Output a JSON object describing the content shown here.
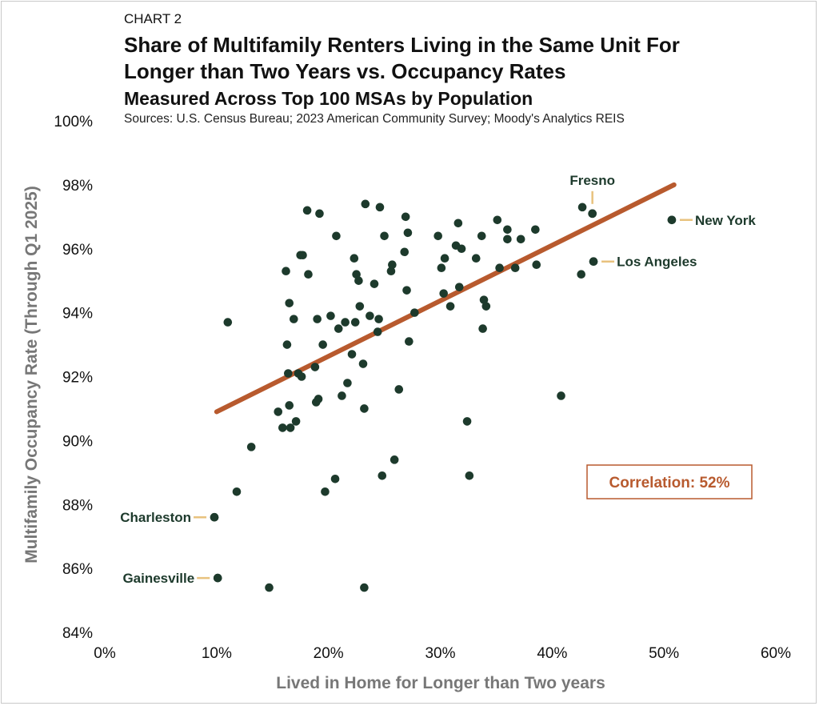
{
  "header": {
    "chart_label": "CHART 2",
    "title_line1": "Share of Multifamily Renters Living in the Same Unit For",
    "title_line2": "Longer than Two Years vs. Occupancy Rates",
    "subtitle": "Measured Across Top 100 MSAs by Population",
    "sources": "Sources: U.S. Census Bureau; 2023 American Community Survey; Moody's Analytics REIS"
  },
  "colors": {
    "points": "#1d3a2c",
    "trend": "#b85a2e",
    "leader": "#e8c27e",
    "axis_text": "#777777",
    "callout_text": "#1d3a2c"
  },
  "chart_data": {
    "type": "scatter",
    "title": "Share of Multifamily Renters Living in the Same Unit For Longer than Two Years vs. Occupancy Rates",
    "subtitle": "Measured Across Top 100 MSAs by Population",
    "xlabel": "Lived in Home for Longer than Two years",
    "ylabel": "Multifamily Occupancy Rate (Through Q1 2025)",
    "xlim": [
      0,
      60
    ],
    "ylim": [
      84,
      100
    ],
    "x_ticks": [
      0,
      10,
      20,
      30,
      40,
      50,
      60
    ],
    "x_tick_labels": [
      "0%",
      "10%",
      "20%",
      "30%",
      "40%",
      "50%",
      "60%"
    ],
    "y_ticks": [
      84,
      86,
      88,
      90,
      92,
      94,
      96,
      98,
      100
    ],
    "y_tick_labels": [
      "84%",
      "86%",
      "88%",
      "90%",
      "92%",
      "94%",
      "96%",
      "98%",
      "100%"
    ],
    "grid": false,
    "trendline": {
      "x": [
        10.0,
        50.9
      ],
      "y": [
        90.9,
        98.0
      ]
    },
    "correlation_label": "Correlation: 52%",
    "labeled_points": [
      {
        "name": "Fresno",
        "x": 43.6,
        "y": 97.1,
        "label_side": "top"
      },
      {
        "name": "New York",
        "x": 50.7,
        "y": 96.9,
        "label_side": "right"
      },
      {
        "name": "Los Angeles",
        "x": 43.7,
        "y": 95.6,
        "label_side": "right"
      },
      {
        "name": "Charleston",
        "x": 9.8,
        "y": 87.6,
        "label_side": "left"
      },
      {
        "name": "Gainesville",
        "x": 10.1,
        "y": 85.7,
        "label_side": "left"
      }
    ],
    "points": [
      [
        11.0,
        93.7
      ],
      [
        11.8,
        88.4
      ],
      [
        13.1,
        89.8
      ],
      [
        14.7,
        85.4
      ],
      [
        15.5,
        90.9
      ],
      [
        15.9,
        90.4
      ],
      [
        16.2,
        95.3
      ],
      [
        16.3,
        93.0
      ],
      [
        16.4,
        92.1
      ],
      [
        16.5,
        94.3
      ],
      [
        16.5,
        91.1
      ],
      [
        16.6,
        90.4
      ],
      [
        16.9,
        93.8
      ],
      [
        17.1,
        90.6
      ],
      [
        17.3,
        92.1
      ],
      [
        17.5,
        95.8
      ],
      [
        17.6,
        92.0
      ],
      [
        17.7,
        95.8
      ],
      [
        18.1,
        97.2
      ],
      [
        18.2,
        95.2
      ],
      [
        18.8,
        92.3
      ],
      [
        18.9,
        91.2
      ],
      [
        19.0,
        93.8
      ],
      [
        19.1,
        91.3
      ],
      [
        19.2,
        97.1
      ],
      [
        19.5,
        93.0
      ],
      [
        19.7,
        88.4
      ],
      [
        20.2,
        93.9
      ],
      [
        20.6,
        88.8
      ],
      [
        20.7,
        96.4
      ],
      [
        20.9,
        93.5
      ],
      [
        21.2,
        91.4
      ],
      [
        21.5,
        93.7
      ],
      [
        21.7,
        91.8
      ],
      [
        22.1,
        92.7
      ],
      [
        22.3,
        95.7
      ],
      [
        22.4,
        93.7
      ],
      [
        22.5,
        95.2
      ],
      [
        22.7,
        95.0
      ],
      [
        22.8,
        94.2
      ],
      [
        23.1,
        92.4
      ],
      [
        23.2,
        85.4
      ],
      [
        23.2,
        91.0
      ],
      [
        23.3,
        97.4
      ],
      [
        23.7,
        93.9
      ],
      [
        24.1,
        94.9
      ],
      [
        24.4,
        93.4
      ],
      [
        24.5,
        93.8
      ],
      [
        24.6,
        97.3
      ],
      [
        24.8,
        88.9
      ],
      [
        25.0,
        96.4
      ],
      [
        25.6,
        95.3
      ],
      [
        25.7,
        95.5
      ],
      [
        25.9,
        89.4
      ],
      [
        26.3,
        91.6
      ],
      [
        26.8,
        95.9
      ],
      [
        26.9,
        97.0
      ],
      [
        27.0,
        94.7
      ],
      [
        27.1,
        96.5
      ],
      [
        27.2,
        93.1
      ],
      [
        27.7,
        94.0
      ],
      [
        29.8,
        96.4
      ],
      [
        30.1,
        95.4
      ],
      [
        30.3,
        94.6
      ],
      [
        30.4,
        95.7
      ],
      [
        30.9,
        94.2
      ],
      [
        31.4,
        96.1
      ],
      [
        31.6,
        96.8
      ],
      [
        31.7,
        94.8
      ],
      [
        31.9,
        96.0
      ],
      [
        32.4,
        90.6
      ],
      [
        32.6,
        88.9
      ],
      [
        33.2,
        95.7
      ],
      [
        33.7,
        96.4
      ],
      [
        33.8,
        93.5
      ],
      [
        33.9,
        94.4
      ],
      [
        34.1,
        94.2
      ],
      [
        35.1,
        96.9
      ],
      [
        35.3,
        95.4
      ],
      [
        36.0,
        96.6
      ],
      [
        36.0,
        96.3
      ],
      [
        36.7,
        95.4
      ],
      [
        37.2,
        96.3
      ],
      [
        38.5,
        96.6
      ],
      [
        38.6,
        95.5
      ],
      [
        40.8,
        91.4
      ],
      [
        42.6,
        95.2
      ],
      [
        42.7,
        97.3
      ],
      [
        43.6,
        97.1
      ],
      [
        43.7,
        95.6
      ],
      [
        50.7,
        96.9
      ],
      [
        9.8,
        87.6
      ],
      [
        10.1,
        85.7
      ]
    ]
  }
}
